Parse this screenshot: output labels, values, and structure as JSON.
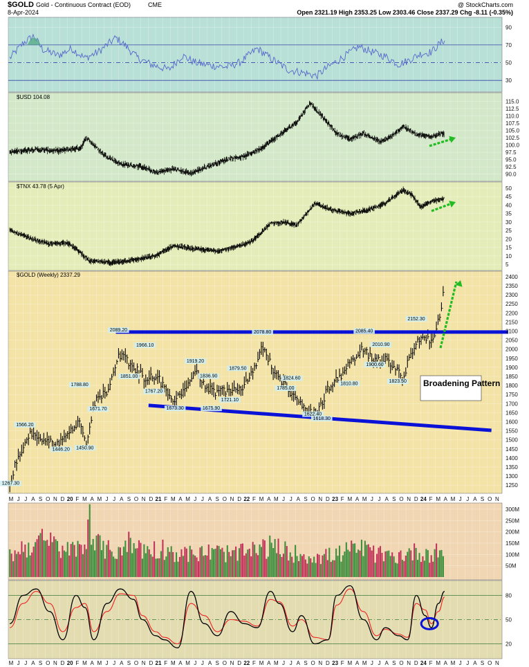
{
  "header": {
    "symbol": "$GOLD",
    "description": "Gold - Continuous Contract (EOD)",
    "exchange": "CME",
    "date": "8-Apr-2024",
    "credit": "@ StockCharts.com",
    "ohlc": "Open 2321.19  High 2353.25  Low 2303.46  Close 2337.29  Chg -8.11 (-0.35%)"
  },
  "colors": {
    "rsi_bg": "#b9e0d6",
    "usd_bg": "#d3e8c8",
    "tnx_bg": "#e4edb9",
    "gold_bg": "#f3e3a6",
    "volume_bg": "#f1d6b3",
    "stoch_bg": "#e3dcb0",
    "trendline": "#0a12d8",
    "arrow": "#22bb22",
    "vol_up": "#3f8f3f",
    "vol_down": "#c2355a",
    "rsi_line": "#5566cc",
    "stoch_k": "#000000",
    "stoch_d": "#ee2222"
  },
  "chart_data": [
    {
      "panel": "rsi",
      "type": "line",
      "y_ticks": [
        "90",
        "70",
        "50",
        "30"
      ],
      "levels": [
        70,
        50,
        30
      ],
      "ylim": [
        20,
        98
      ],
      "t": [
        2019.35,
        2019.5,
        2019.62,
        2019.72,
        2019.9,
        2020.05,
        2020.2,
        2020.35,
        2020.55,
        2020.65,
        2020.8,
        2020.95,
        2021.15,
        2021.3,
        2021.45,
        2021.6,
        2021.8,
        2021.95,
        2022.15,
        2022.3,
        2022.5,
        2022.7,
        2022.82,
        2022.95,
        2023.15,
        2023.3,
        2023.45,
        2023.6,
        2023.75,
        2023.85,
        2024.0,
        2024.12,
        2024.2,
        2024.27
      ],
      "values": [
        55,
        72,
        80,
        65,
        58,
        66,
        55,
        62,
        78,
        70,
        55,
        48,
        42,
        58,
        50,
        47,
        45,
        50,
        66,
        55,
        42,
        38,
        35,
        45,
        58,
        68,
        62,
        57,
        48,
        52,
        60,
        62,
        70,
        76
      ]
    },
    {
      "panel": "usd",
      "type": "line",
      "title": "$USD 104.08",
      "y_ticks": [
        "115.0",
        "112.5",
        "110.0",
        "107.5",
        "105.0",
        "102.5",
        "100.0",
        "97.5",
        "95.0",
        "92.5",
        "90.0"
      ],
      "ylim": [
        88.5,
        117
      ],
      "t": [
        2019.35,
        2019.6,
        2019.9,
        2020.15,
        2020.22,
        2020.4,
        2020.6,
        2020.85,
        2021.0,
        2021.2,
        2021.4,
        2021.6,
        2021.85,
        2022.0,
        2022.2,
        2022.45,
        2022.6,
        2022.75,
        2022.85,
        2023.05,
        2023.2,
        2023.35,
        2023.55,
        2023.7,
        2023.8,
        2023.95,
        2024.1,
        2024.27
      ],
      "values": [
        97.5,
        98.5,
        98.0,
        99.0,
        102.5,
        97.0,
        93.5,
        92.5,
        90.5,
        91.8,
        90.3,
        92.8,
        95.5,
        96.0,
        99.0,
        104.5,
        108.0,
        114.5,
        111.0,
        104.0,
        102.0,
        104.0,
        101.0,
        103.5,
        106.5,
        103.5,
        103.0,
        104.1
      ],
      "last": 104.08
    },
    {
      "panel": "tnx",
      "type": "line",
      "title": "$TNX 43.78 (5 Apr)",
      "y_ticks": [
        "50",
        "45",
        "40",
        "35",
        "30",
        "25",
        "20",
        "15",
        "10",
        "5"
      ],
      "ylim": [
        3,
        52
      ],
      "t": [
        2019.35,
        2019.6,
        2019.8,
        2020.0,
        2020.15,
        2020.25,
        2020.5,
        2020.8,
        2021.0,
        2021.2,
        2021.45,
        2021.7,
        2021.9,
        2022.1,
        2022.3,
        2022.45,
        2022.6,
        2022.8,
        2023.0,
        2023.2,
        2023.4,
        2023.6,
        2023.8,
        2023.9,
        2024.0,
        2024.12,
        2024.27
      ],
      "values": [
        25,
        20,
        17,
        18,
        12,
        7,
        6,
        8,
        10,
        16,
        14,
        13,
        15,
        19,
        29,
        30,
        28,
        41,
        37,
        35,
        37,
        41,
        49,
        46,
        39,
        42,
        43.78
      ],
      "last": 43.78
    },
    {
      "panel": "gold",
      "type": "bar",
      "title": "$GOLD (Weekly) 2337.29",
      "y_ticks": [
        "2400",
        "2350",
        "2300",
        "2250",
        "2200",
        "2150",
        "2100",
        "2050",
        "2000",
        "1950",
        "1900",
        "1850",
        "1800",
        "1750",
        "1700",
        "1650",
        "1600",
        "1550",
        "1500",
        "1450",
        "1400",
        "1350",
        "1300",
        "1250"
      ],
      "ylim": [
        1220,
        2415
      ],
      "x_labels": [
        "M",
        "J",
        "J",
        "A",
        "S",
        "O",
        "N",
        "D",
        "20",
        "F",
        "M",
        "A",
        "M",
        "J",
        "J",
        "A",
        "S",
        "O",
        "N",
        "D",
        "21",
        "F",
        "M",
        "A",
        "M",
        "J",
        "J",
        "A",
        "S",
        "O",
        "N",
        "D",
        "22",
        "F",
        "M",
        "A",
        "M",
        "J",
        "J",
        "A",
        "S",
        "O",
        "N",
        "D",
        "23",
        "F",
        "M",
        "A",
        "M",
        "J",
        "J",
        "A",
        "S",
        "O",
        "N",
        "D",
        "24",
        "F",
        "M",
        "A",
        "M",
        "J",
        "J",
        "A",
        "S",
        "O",
        "N"
      ],
      "x_start": 2019.333,
      "t": [
        2019.35,
        2019.45,
        2019.6,
        2019.75,
        2019.9,
        2020.05,
        2020.15,
        2020.22,
        2020.3,
        2020.45,
        2020.58,
        2020.7,
        2020.8,
        2020.9,
        2021.0,
        2021.1,
        2021.2,
        2021.35,
        2021.45,
        2021.55,
        2021.7,
        2021.9,
        2022.0,
        2022.12,
        2022.2,
        2022.35,
        2022.45,
        2022.55,
        2022.7,
        2022.82,
        2022.95,
        2023.1,
        2023.2,
        2023.35,
        2023.45,
        2023.6,
        2023.72,
        2023.8,
        2023.88,
        2024.0,
        2024.12,
        2024.2,
        2024.27
      ],
      "values": [
        1267,
        1420,
        1540,
        1500,
        1470,
        1560,
        1600,
        1480,
        1700,
        1770,
        1980,
        1920,
        1880,
        1830,
        1860,
        1790,
        1700,
        1790,
        1900,
        1800,
        1760,
        1790,
        1800,
        1900,
        2020,
        1870,
        1810,
        1740,
        1660,
        1640,
        1780,
        1860,
        1920,
        2010,
        1940,
        1940,
        1900,
        1830,
        1980,
        2060,
        2040,
        2150,
        2337
      ],
      "price_labels": [
        {
          "t": 2019.36,
          "v": 1252,
          "label": "1267.30"
        },
        {
          "t": 2019.52,
          "v": 1575,
          "label": "1566.20"
        },
        {
          "t": 2019.93,
          "v": 1440,
          "label": "1446.20"
        },
        {
          "t": 2020.2,
          "v": 1448,
          "label": "1450.90"
        },
        {
          "t": 2020.14,
          "v": 1796,
          "label": "1788.80"
        },
        {
          "t": 2020.35,
          "v": 1663,
          "label": "1671.70"
        },
        {
          "t": 2020.58,
          "v": 2098,
          "label": "2089.20"
        },
        {
          "t": 2020.88,
          "v": 2015,
          "label": "1966.10"
        },
        {
          "t": 2020.7,
          "v": 1843,
          "label": "1851.00"
        },
        {
          "t": 2020.98,
          "v": 1760,
          "label": "1767.20"
        },
        {
          "t": 2021.22,
          "v": 1666,
          "label": "1673.30"
        },
        {
          "t": 2021.45,
          "v": 1927,
          "label": "1919.20"
        },
        {
          "t": 2021.6,
          "v": 1844,
          "label": "1836.90"
        },
        {
          "t": 2021.63,
          "v": 1666,
          "label": "1675.90"
        },
        {
          "t": 2021.84,
          "v": 1713,
          "label": "1721.10"
        },
        {
          "t": 2021.93,
          "v": 1887,
          "label": "1879.50"
        },
        {
          "t": 2022.21,
          "v": 2086,
          "label": "2078.80"
        },
        {
          "t": 2022.54,
          "v": 1832,
          "label": "1824.60"
        },
        {
          "t": 2022.47,
          "v": 1777,
          "label": "1785.00"
        },
        {
          "t": 2022.78,
          "v": 1634,
          "label": "1622.40"
        },
        {
          "t": 2022.88,
          "v": 1610,
          "label": "1618.30"
        },
        {
          "t": 2023.19,
          "v": 1803,
          "label": "1810.80"
        },
        {
          "t": 2023.36,
          "v": 2093,
          "label": "2085.40"
        },
        {
          "t": 2023.55,
          "v": 2018,
          "label": "2010.90"
        },
        {
          "t": 2023.48,
          "v": 1908,
          "label": "1900.60"
        },
        {
          "t": 2023.74,
          "v": 1815,
          "label": "1823.50"
        },
        {
          "t": 2023.95,
          "v": 2160,
          "label": "2152.30"
        }
      ],
      "resistance": {
        "t1": 2020.55,
        "t2": 2024.99,
        "v1": 2095,
        "v2": 2095
      },
      "support": {
        "t1": 2020.92,
        "t2": 2024.8,
        "v1": 1690,
        "v2": 1552
      },
      "annotation": "Broadening Pattern"
    },
    {
      "panel": "volume",
      "type": "bar",
      "y_ticks": [
        "300M",
        "250M",
        "200M",
        "150M",
        "100M",
        "50M"
      ],
      "ylim": [
        0,
        315
      ],
      "t": [
        2019.35,
        2019.55,
        2019.75,
        2020.0,
        2020.2,
        2020.25,
        2020.3,
        2020.5,
        2020.7,
        2020.9,
        2021.1,
        2021.3,
        2021.5,
        2021.7,
        2021.9,
        2022.1,
        2022.3,
        2022.5,
        2022.7,
        2022.9,
        2023.1,
        2023.3,
        2023.5,
        2023.7,
        2023.9,
        2024.1,
        2024.27
      ],
      "values": [
        95,
        140,
        160,
        115,
        135,
        310,
        150,
        110,
        150,
        120,
        125,
        100,
        105,
        110,
        100,
        115,
        135,
        110,
        95,
        90,
        105,
        130,
        100,
        90,
        110,
        105,
        115
      ]
    },
    {
      "panel": "stochastic",
      "type": "line",
      "y_ticks": [
        "80",
        "50",
        "20"
      ],
      "levels": [
        80,
        50,
        20
      ],
      "ylim": [
        5,
        95
      ],
      "t": [
        2019.35,
        2019.5,
        2019.65,
        2019.8,
        2019.95,
        2020.1,
        2020.2,
        2020.3,
        2020.45,
        2020.6,
        2020.75,
        2020.85,
        2021.0,
        2021.1,
        2021.25,
        2021.4,
        2021.55,
        2021.7,
        2021.85,
        2022.0,
        2022.15,
        2022.3,
        2022.4,
        2022.55,
        2022.65,
        2022.8,
        2022.95,
        2023.05,
        2023.2,
        2023.35,
        2023.5,
        2023.6,
        2023.75,
        2023.85,
        2023.95,
        2024.05,
        2024.12,
        2024.2,
        2024.27
      ],
      "k": [
        45,
        80,
        88,
        60,
        25,
        80,
        65,
        25,
        70,
        88,
        75,
        50,
        30,
        25,
        15,
        85,
        45,
        30,
        60,
        45,
        40,
        85,
        70,
        35,
        55,
        20,
        25,
        80,
        92,
        50,
        25,
        40,
        30,
        25,
        80,
        55,
        40,
        70,
        85
      ],
      "d": [
        40,
        70,
        85,
        70,
        35,
        65,
        70,
        35,
        60,
        82,
        80,
        55,
        35,
        28,
        20,
        70,
        55,
        35,
        50,
        48,
        42,
        75,
        72,
        42,
        50,
        28,
        25,
        68,
        88,
        60,
        30,
        38,
        32,
        28,
        70,
        62,
        45,
        60,
        78
      ]
    }
  ]
}
